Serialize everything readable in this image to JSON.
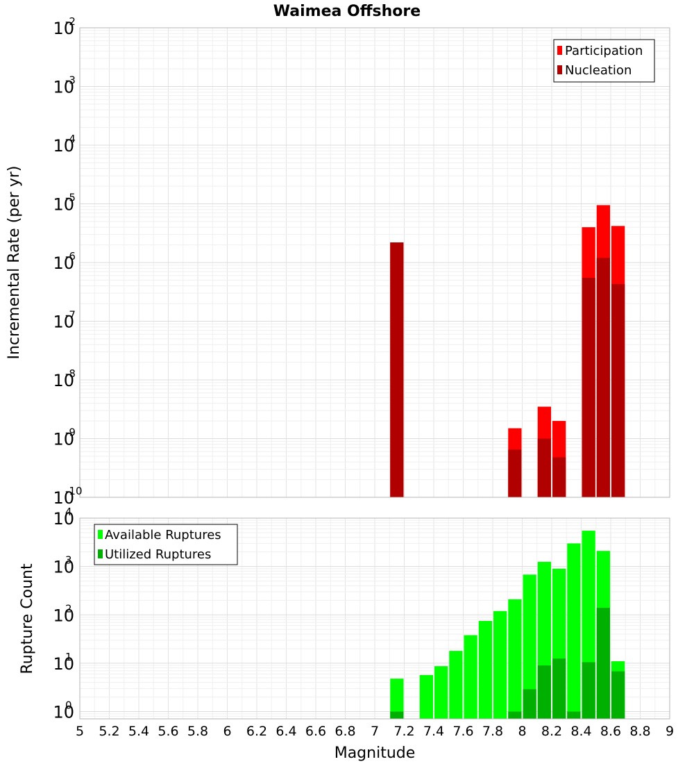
{
  "title": "Waimea Offshore",
  "chart_data": [
    {
      "type": "bar",
      "scale": "log",
      "ylabel": "Incremental Rate (per yr)",
      "xlabel": "",
      "ylim_exponent": [
        -10,
        -2
      ],
      "xlim": [
        5,
        9
      ],
      "grid": true,
      "legend_position": "top-right",
      "legend": [
        "Participation",
        "Nucleation"
      ],
      "colors": {
        "Participation": "#ff0000",
        "Nucleation": "#b00000"
      },
      "series": [
        {
          "name": "Participation",
          "x": [
            7.15,
            7.95,
            8.15,
            8.25,
            8.45,
            8.55,
            8.65
          ],
          "values": [
            2.2e-06,
            1.5e-09,
            3.5e-09,
            2e-09,
            4e-06,
            9.5e-06,
            4.2e-06
          ]
        },
        {
          "name": "Nucleation",
          "x": [
            7.15,
            7.95,
            8.15,
            8.25,
            8.45,
            8.55,
            8.65
          ],
          "values": [
            2.2e-06,
            6.5e-10,
            1e-09,
            4.8e-10,
            5.5e-07,
            1.2e-06,
            4.3e-07
          ]
        }
      ],
      "y_ticks": [
        {
          "base": "10",
          "exp": "-10"
        },
        {
          "base": "10",
          "exp": "-9"
        },
        {
          "base": "10",
          "exp": "-8"
        },
        {
          "base": "10",
          "exp": "-7"
        },
        {
          "base": "10",
          "exp": "-6"
        },
        {
          "base": "10",
          "exp": "-5"
        },
        {
          "base": "10",
          "exp": "-4"
        },
        {
          "base": "10",
          "exp": "-3"
        },
        {
          "base": "10",
          "exp": "-2"
        }
      ]
    },
    {
      "type": "bar",
      "scale": "log",
      "ylabel": "Rupture Count",
      "xlabel": "Magnitude",
      "ylim_exponent": [
        -0.15,
        4
      ],
      "xlim": [
        5,
        9
      ],
      "grid": true,
      "legend_position": "top-left",
      "legend": [
        "Available Ruptures",
        "Utilized Ruptures"
      ],
      "colors": {
        "Available Ruptures": "#00ff00",
        "Utilized Ruptures": "#00b000"
      },
      "series": [
        {
          "name": "Available Ruptures",
          "x": [
            7.15,
            7.35,
            7.45,
            7.55,
            7.65,
            7.75,
            7.85,
            7.95,
            8.05,
            8.15,
            8.25,
            8.35,
            8.45,
            8.55,
            8.65
          ],
          "values": [
            4.8,
            5.7,
            8.7,
            18,
            38,
            75,
            120,
            210,
            680,
            1250,
            900,
            3000,
            5500,
            2100,
            11
          ]
        },
        {
          "name": "Utilized Ruptures",
          "x": [
            7.15,
            7.35,
            7.45,
            7.55,
            7.65,
            7.75,
            7.85,
            7.95,
            8.05,
            8.15,
            8.25,
            8.35,
            8.45,
            8.55,
            8.65
          ],
          "values": [
            1,
            0,
            0,
            0,
            0,
            0,
            0,
            1,
            2.9,
            9,
            12.5,
            1,
            10.5,
            140,
            6.8
          ]
        }
      ],
      "y_ticks": [
        {
          "base": "10",
          "exp": "0"
        },
        {
          "base": "10",
          "exp": "1"
        },
        {
          "base": "10",
          "exp": "2"
        },
        {
          "base": "10",
          "exp": "3"
        },
        {
          "base": "10",
          "exp": "4"
        }
      ]
    }
  ],
  "x_ticks": [
    "5",
    "5.2",
    "5.4",
    "5.6",
    "5.8",
    "6",
    "6.2",
    "6.4",
    "6.6",
    "6.8",
    "7",
    "7.2",
    "7.4",
    "7.6",
    "7.8",
    "8",
    "8.2",
    "8.4",
    "8.6",
    "8.8",
    "9"
  ]
}
